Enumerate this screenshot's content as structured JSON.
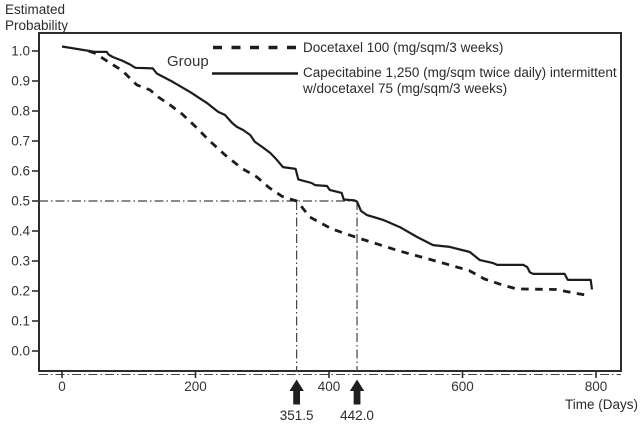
{
  "ui": {
    "y_axis_title_lines": [
      "Estimated",
      "Probability"
    ],
    "legend": {
      "title": "Group",
      "item1_label": "Docetaxel 100 (mg/sqm/3 weeks)",
      "item2_label_line1": "Capecitabine 1,250 (mg/sqm twice daily) intermittent",
      "item2_label_line2": "w/docetaxel 75 (mg/sqm/3 weeks)"
    },
    "x_axis_label": "Time (Days)"
  },
  "chart_data": {
    "type": "line",
    "title": "",
    "xlabel": "Time (Days)",
    "ylabel": "Estimated Probability",
    "xlim": [
      0,
      840
    ],
    "ylim": [
      0,
      1.05
    ],
    "x_ticks": [
      "0",
      "200",
      "400",
      "600",
      "800"
    ],
    "y_ticks": [
      "0.0",
      "0.1",
      "0.2",
      "0.3",
      "0.4",
      "0.5",
      "0.6",
      "0.7",
      "0.8",
      "0.9",
      "1.0"
    ],
    "grid": false,
    "legend_position": "top-right-inside",
    "series": [
      {
        "name": "Docetaxel 100 (mg/sqm/3 weeks)",
        "style": "dashed",
        "points": [
          [
            40,
            1.0
          ],
          [
            49,
            0.993
          ],
          [
            72,
            0.96
          ],
          [
            90,
            0.935
          ],
          [
            97,
            0.92
          ],
          [
            112,
            0.887
          ],
          [
            132,
            0.87
          ],
          [
            144,
            0.847
          ],
          [
            162,
            0.82
          ],
          [
            180,
            0.79
          ],
          [
            200,
            0.748
          ],
          [
            220,
            0.703
          ],
          [
            245,
            0.652
          ],
          [
            270,
            0.608
          ],
          [
            292,
            0.58
          ],
          [
            310,
            0.545
          ],
          [
            330,
            0.515
          ],
          [
            351.5,
            0.5
          ],
          [
            360,
            0.478
          ],
          [
            371,
            0.447
          ],
          [
            404,
            0.407
          ],
          [
            446,
            0.375
          ],
          [
            506,
            0.333
          ],
          [
            560,
            0.3
          ],
          [
            610,
            0.268
          ],
          [
            633,
            0.24
          ],
          [
            660,
            0.22
          ],
          [
            681,
            0.207
          ],
          [
            740,
            0.205
          ],
          [
            770,
            0.192
          ],
          [
            790,
            0.185
          ]
        ]
      },
      {
        "name": "Capecitabine 1,250 (mg/sqm twice daily) intermittent w/docetaxel 75 (mg/sqm/3 weeks)",
        "style": "solid",
        "points": [
          [
            0,
            1.015
          ],
          [
            50,
            0.997
          ],
          [
            67,
            0.997
          ],
          [
            70,
            0.988
          ],
          [
            76,
            0.98
          ],
          [
            90,
            0.968
          ],
          [
            102,
            0.955
          ],
          [
            110,
            0.944
          ],
          [
            136,
            0.942
          ],
          [
            142,
            0.925
          ],
          [
            166,
            0.897
          ],
          [
            192,
            0.863
          ],
          [
            217,
            0.827
          ],
          [
            234,
            0.797
          ],
          [
            244,
            0.787
          ],
          [
            255,
            0.76
          ],
          [
            262,
            0.747
          ],
          [
            271,
            0.737
          ],
          [
            282,
            0.72
          ],
          [
            289,
            0.697
          ],
          [
            300,
            0.68
          ],
          [
            312,
            0.66
          ],
          [
            322,
            0.637
          ],
          [
            331,
            0.613
          ],
          [
            350,
            0.607
          ],
          [
            354,
            0.572
          ],
          [
            374,
            0.56
          ],
          [
            379,
            0.553
          ],
          [
            397,
            0.55
          ],
          [
            401,
            0.537
          ],
          [
            419,
            0.527
          ],
          [
            422,
            0.505
          ],
          [
            438,
            0.502
          ],
          [
            442,
            0.498
          ],
          [
            448,
            0.467
          ],
          [
            457,
            0.453
          ],
          [
            481,
            0.437
          ],
          [
            506,
            0.413
          ],
          [
            532,
            0.38
          ],
          [
            556,
            0.353
          ],
          [
            581,
            0.347
          ],
          [
            611,
            0.33
          ],
          [
            626,
            0.303
          ],
          [
            646,
            0.293
          ],
          [
            652,
            0.287
          ],
          [
            691,
            0.287
          ],
          [
            697,
            0.28
          ],
          [
            701,
            0.262
          ],
          [
            706,
            0.257
          ],
          [
            753,
            0.257
          ],
          [
            757,
            0.24
          ],
          [
            758,
            0.237
          ],
          [
            792,
            0.237
          ],
          [
            794,
            0.205
          ]
        ]
      }
    ],
    "annotations": {
      "reference_probability": 0.5,
      "medians": [
        {
          "series": "Docetaxel 100 (mg/sqm/3 weeks)",
          "day": 351.5,
          "label": "351.5"
        },
        {
          "series": "Capecitabine 1,250 (mg/sqm twice daily) intermittent w/docetaxel 75 (mg/sqm/3 weeks)",
          "day": 442.0,
          "label": "442.0"
        }
      ]
    },
    "colors": {
      "line": "#1c1c1c",
      "axis": "#2d2d2d",
      "reference": "#444444",
      "text": "#333333"
    }
  }
}
